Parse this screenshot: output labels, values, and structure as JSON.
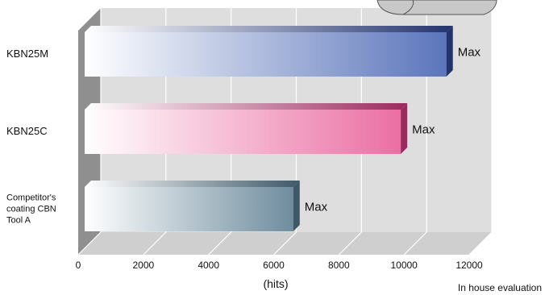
{
  "chart_data": {
    "type": "bar",
    "orientation": "horizontal",
    "style": "3d",
    "categories": [
      "KBN25M",
      "KBN25C",
      "Competitor's coating CBN Tool A"
    ],
    "category_label_lines": [
      [
        "KBN25M"
      ],
      [
        "KBN25C"
      ],
      [
        "Competitor's",
        "coating CBN",
        "Tool A"
      ]
    ],
    "values": [
      11300,
      9900,
      6600
    ],
    "bar_labels": [
      "Max",
      "Max",
      "Max"
    ],
    "xlim": [
      0,
      12000
    ],
    "xticks": [
      0,
      2000,
      4000,
      6000,
      8000,
      10000,
      12000
    ],
    "xlabel": "(hits)",
    "grid": true,
    "colors": {
      "bar_end": [
        "#5b75bb",
        "#ea6fa3",
        "#6f8d9e"
      ],
      "bar_side": [
        "#23336e",
        "#9c2a5e",
        "#3f5868"
      ],
      "wall": "#dedede",
      "wall_left": "#8f8f8f",
      "floor": "#cfcfcf"
    }
  },
  "footer": {
    "note": "In house evaluation"
  }
}
